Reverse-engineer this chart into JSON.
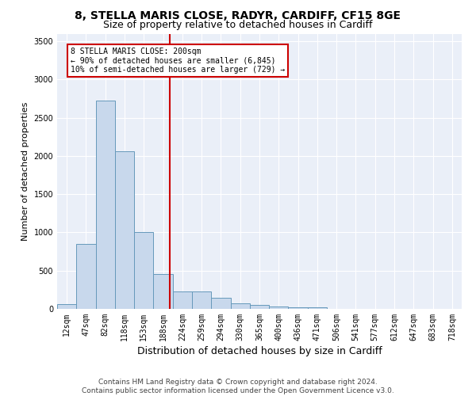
{
  "title_line1": "8, STELLA MARIS CLOSE, RADYR, CARDIFF, CF15 8GE",
  "title_line2": "Size of property relative to detached houses in Cardiff",
  "xlabel": "Distribution of detached houses by size in Cardiff",
  "ylabel": "Number of detached properties",
  "bar_color": "#c8d8ec",
  "bar_edge_color": "#6699bb",
  "vline_color": "#cc0000",
  "annotation_title": "8 STELLA MARIS CLOSE: 200sqm",
  "annotation_line2": "← 90% of detached houses are smaller (6,845)",
  "annotation_line3": "10% of semi-detached houses are larger (729) →",
  "ylim_max": 3600,
  "yticks": [
    0,
    500,
    1000,
    1500,
    2000,
    2500,
    3000,
    3500
  ],
  "categories": [
    "12sqm",
    "47sqm",
    "82sqm",
    "118sqm",
    "153sqm",
    "188sqm",
    "224sqm",
    "259sqm",
    "294sqm",
    "330sqm",
    "365sqm",
    "400sqm",
    "436sqm",
    "471sqm",
    "506sqm",
    "541sqm",
    "577sqm",
    "612sqm",
    "647sqm",
    "683sqm",
    "718sqm"
  ],
  "bar_values": [
    60,
    850,
    2720,
    2060,
    1010,
    460,
    230,
    230,
    140,
    70,
    55,
    30,
    20,
    20,
    5,
    5,
    5,
    3,
    0,
    0,
    0
  ],
  "vline_xindex": 5.333,
  "footnote_line1": "Contains HM Land Registry data © Crown copyright and database right 2024.",
  "footnote_line2": "Contains public sector information licensed under the Open Government Licence v3.0.",
  "background_color": "#eaeff8",
  "grid_color": "#ffffff",
  "title_fontsize": 10,
  "subtitle_fontsize": 9,
  "ylabel_fontsize": 8,
  "xlabel_fontsize": 9,
  "tick_fontsize": 7,
  "footnote_fontsize": 6.5,
  "annotation_fontsize": 7
}
